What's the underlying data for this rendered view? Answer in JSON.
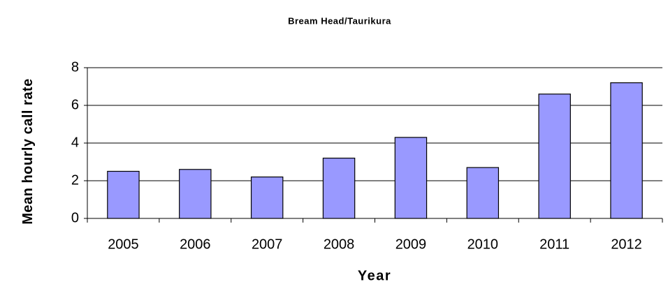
{
  "chart_data": {
    "type": "bar",
    "title": "Bream Head/Taurikura",
    "x_label": "Year",
    "y_label": "Mean hourly call rate",
    "categories": [
      "2005",
      "2006",
      "2007",
      "2008",
      "2009",
      "2010",
      "2011",
      "2012"
    ],
    "values": [
      2.5,
      2.6,
      2.2,
      3.2,
      4.3,
      2.7,
      6.6,
      7.2
    ],
    "color": "#9999ff",
    "ylim": [
      0,
      8
    ],
    "yticks": [
      0,
      2,
      4,
      6,
      8
    ],
    "grid": true
  }
}
